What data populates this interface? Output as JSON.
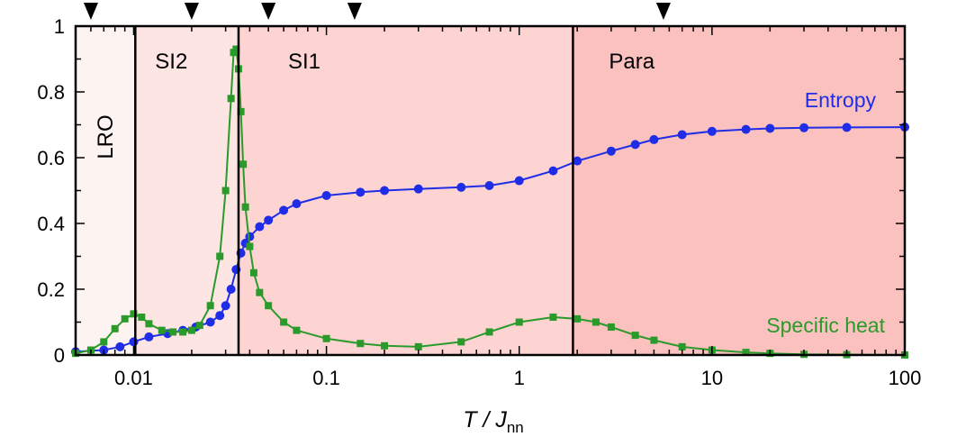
{
  "chart_data": {
    "type": "scatter",
    "xscale": "log",
    "xlim": [
      0.005,
      100
    ],
    "ylim": [
      0,
      1
    ],
    "xticks": [
      0.01,
      0.1,
      1,
      10,
      100
    ],
    "xtick_labels": [
      "0.01",
      "0.1",
      "1",
      "10",
      "100"
    ],
    "yticks": [
      0,
      0.2,
      0.4,
      0.6,
      0.8,
      1
    ],
    "ytick_labels": [
      "0",
      "0.2",
      "0.4",
      "0.6",
      "0.8",
      "1"
    ],
    "xlabel": {
      "main": "T / J",
      "sub": "nn"
    },
    "ylabel": "",
    "grid": false,
    "phases": [
      {
        "label": "LRO",
        "from": 0.005,
        "to": 0.0102,
        "color": "#fdf3f1",
        "vertical": true
      },
      {
        "label": "SI2",
        "from": 0.0102,
        "to": 0.035,
        "color": "#fde5e4"
      },
      {
        "label": "SI1",
        "from": 0.035,
        "to": 1.9,
        "color": "#fdd4d2"
      },
      {
        "label": "Para",
        "from": 1.9,
        "to": 100,
        "color": "#fbc1be"
      }
    ],
    "phase_boundaries": [
      0.0102,
      0.035,
      1.9
    ],
    "top_markers": [
      0.006,
      0.02,
      0.05,
      0.14,
      5.6
    ],
    "series": [
      {
        "name": "Entropy",
        "color": "#1f2de6",
        "marker": "circle",
        "x": [
          0.005,
          0.007,
          0.0085,
          0.01,
          0.012,
          0.015,
          0.018,
          0.021,
          0.025,
          0.028,
          0.03,
          0.032,
          0.034,
          0.036,
          0.038,
          0.04,
          0.045,
          0.05,
          0.06,
          0.07,
          0.1,
          0.15,
          0.2,
          0.3,
          0.5,
          0.7,
          1,
          1.5,
          2,
          3,
          4,
          5,
          7,
          10,
          15,
          20,
          30,
          50,
          100
        ],
        "y": [
          0.01,
          0.015,
          0.025,
          0.04,
          0.055,
          0.065,
          0.075,
          0.085,
          0.1,
          0.12,
          0.15,
          0.2,
          0.26,
          0.31,
          0.34,
          0.36,
          0.39,
          0.41,
          0.44,
          0.46,
          0.485,
          0.495,
          0.5,
          0.505,
          0.51,
          0.515,
          0.53,
          0.56,
          0.59,
          0.62,
          0.64,
          0.655,
          0.67,
          0.68,
          0.686,
          0.689,
          0.691,
          0.692,
          0.693
        ]
      },
      {
        "name": "Specific heat",
        "color": "#2a9a2a",
        "marker": "square",
        "x": [
          0.005,
          0.006,
          0.007,
          0.008,
          0.009,
          0.01,
          0.011,
          0.012,
          0.014,
          0.016,
          0.018,
          0.02,
          0.022,
          0.025,
          0.028,
          0.03,
          0.032,
          0.033,
          0.034,
          0.035,
          0.036,
          0.037,
          0.038,
          0.04,
          0.042,
          0.045,
          0.05,
          0.06,
          0.07,
          0.1,
          0.15,
          0.2,
          0.3,
          0.5,
          0.7,
          1,
          1.5,
          2,
          2.5,
          3,
          4,
          5,
          7,
          10,
          15,
          20,
          30,
          50,
          100
        ],
        "y": [
          0.005,
          0.015,
          0.04,
          0.08,
          0.11,
          0.125,
          0.115,
          0.095,
          0.075,
          0.07,
          0.07,
          0.075,
          0.09,
          0.15,
          0.3,
          0.5,
          0.78,
          0.92,
          0.93,
          0.87,
          0.74,
          0.58,
          0.45,
          0.33,
          0.25,
          0.19,
          0.15,
          0.1,
          0.075,
          0.05,
          0.035,
          0.028,
          0.025,
          0.04,
          0.07,
          0.1,
          0.115,
          0.11,
          0.1,
          0.085,
          0.06,
          0.045,
          0.025,
          0.015,
          0.008,
          0.005,
          0.002,
          0.001,
          0.0
        ]
      }
    ]
  }
}
